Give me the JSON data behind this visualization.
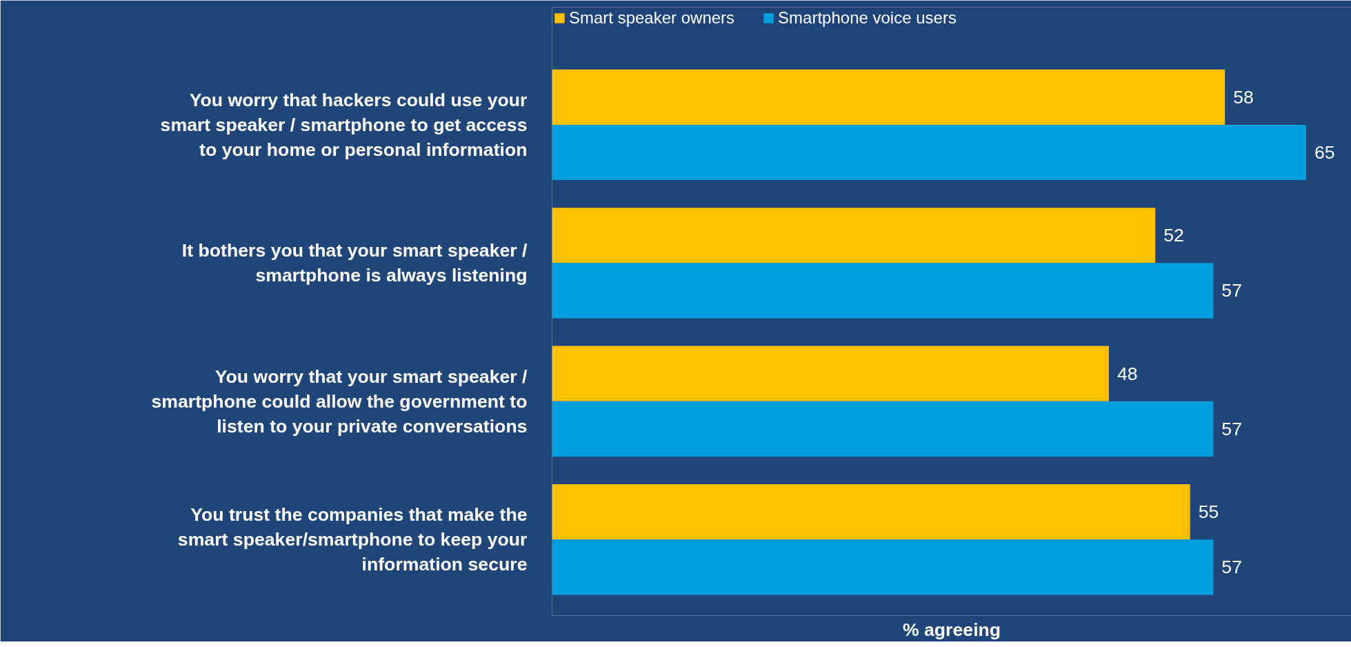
{
  "chart_data": {
    "type": "bar",
    "orientation": "horizontal",
    "xlabel": "% agreeing",
    "categories": [
      "You worry that hackers could use your smart speaker / smartphone to get access to your home or personal information",
      "It bothers you that your smart speaker / smartphone is always listening",
      "You worry that your smart speaker / smartphone could allow the government to listen to your private conversations",
      "You trust the companies that make the smart speaker/smartphone to keep your information secure"
    ],
    "series": [
      {
        "name": "Smart speaker owners",
        "color": "#ffc000",
        "values": [
          58,
          52,
          48,
          55
        ]
      },
      {
        "name": "Smartphone voice users",
        "color": "#00a0e0",
        "values": [
          65,
          57,
          57,
          57
        ]
      }
    ],
    "data_labels": true,
    "legend": "top",
    "grid": false
  }
}
